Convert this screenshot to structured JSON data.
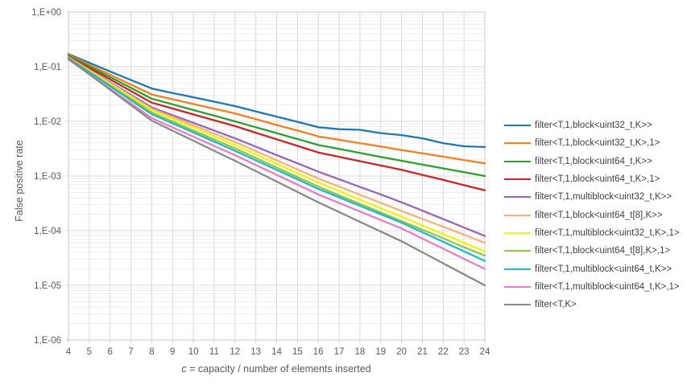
{
  "chart_data": {
    "type": "line",
    "title": "",
    "xlabel": "c = capacity / number of elements inserted",
    "xlabel_var": "c",
    "xlabel_rest": " = capacity / number of elements inserted",
    "ylabel": "False positive rate",
    "x_ticks": [
      4,
      5,
      6,
      7,
      8,
      9,
      10,
      11,
      12,
      13,
      14,
      15,
      16,
      17,
      18,
      19,
      20,
      21,
      22,
      23,
      24
    ],
    "y_tick_labels": [
      "1,E+00",
      "1,E-01",
      "1,E-02",
      "1,E-03",
      "1,E-04",
      "1,E-05",
      "1,E-06"
    ],
    "xlim": [
      4,
      24
    ],
    "ylim": [
      1e-06,
      1
    ],
    "y_scale": "log",
    "grid": true,
    "legend_position": "right",
    "x": [
      4,
      5,
      6,
      7,
      8,
      9,
      10,
      11,
      12,
      13,
      14,
      15,
      16,
      17,
      18,
      19,
      20,
      21,
      22,
      23,
      24
    ],
    "series": [
      {
        "name": "filter<T,1,block<uint32_t,K>>",
        "color": "#1F77B4",
        "values": [
          0.17,
          0.118,
          0.082,
          0.057,
          0.04,
          0.033,
          0.0276,
          0.0229,
          0.019,
          0.0152,
          0.0122,
          0.0098,
          0.0078,
          0.0072,
          0.007,
          0.0061,
          0.0056,
          0.0049,
          0.004,
          0.0035,
          0.0034
        ]
      },
      {
        "name": "filter<T,1,block<uint32_t,K>,1>",
        "color": "#F57E20",
        "values": [
          0.165,
          0.109,
          0.0715,
          0.047,
          0.031,
          0.0254,
          0.0208,
          0.0171,
          0.014,
          0.011,
          0.0086,
          0.0068,
          0.0053,
          0.0046,
          0.004,
          0.00346,
          0.003,
          0.0026,
          0.00226,
          0.00196,
          0.0017
        ]
      },
      {
        "name": "filter<T,1,block<uint64_t,K>>",
        "color": "#2CA02C",
        "values": [
          0.16,
          0.102,
          0.0645,
          0.041,
          0.026,
          0.0205,
          0.0161,
          0.0127,
          0.01,
          0.0078,
          0.0061,
          0.00475,
          0.0037,
          0.00313,
          0.00265,
          0.00224,
          0.0019,
          0.00162,
          0.00138,
          0.00118,
          0.001
        ]
      },
      {
        "name": "filter<T,1,block<uint64_t,K>,1>",
        "color": "#CC2529",
        "values": [
          0.155,
          0.095,
          0.0585,
          0.036,
          0.022,
          0.0172,
          0.0134,
          0.0105,
          0.0082,
          0.0062,
          0.0047,
          0.00356,
          0.0027,
          0.00225,
          0.00187,
          0.00156,
          0.0013,
          0.00105,
          0.00085,
          0.00068,
          0.00055
        ]
      },
      {
        "name": "filter<T,1,multiblock<uint32_t,K>>",
        "color": "#9467BD",
        "values": [
          0.15,
          0.088,
          0.052,
          0.0306,
          0.018,
          0.013,
          0.0094,
          0.0068,
          0.0049,
          0.00345,
          0.00242,
          0.00171,
          0.0012,
          0.00087,
          0.00063,
          0.00046,
          0.00033,
          0.000232,
          0.000163,
          0.000114,
          8e-05
        ]
      },
      {
        "name": "filter<T,1,block<uint64_t[8],K>>",
        "color": "#F2B27E",
        "values": [
          0.149,
          0.0866,
          0.0503,
          0.0292,
          0.017,
          0.012,
          0.00845,
          0.00596,
          0.0042,
          0.00286,
          0.00194,
          0.00132,
          0.0009,
          0.00064,
          0.000455,
          0.000323,
          0.00023,
          0.000164,
          0.000118,
          8.4e-05,
          6e-05
        ]
      },
      {
        "name": "filter<T,1,multiblock<uint32_t,K>,1>",
        "color": "#F2F20C",
        "values": [
          0.147,
          0.0844,
          0.0484,
          0.0278,
          0.016,
          0.0111,
          0.0077,
          0.00533,
          0.0037,
          0.00249,
          0.00168,
          0.00113,
          0.00076,
          0.00053,
          0.00037,
          0.000258,
          0.00018,
          0.000125,
          8.7e-05,
          6e-05,
          4.2e-05
        ]
      },
      {
        "name": "filter<T,1,block<uint64_t[8],K>,1>",
        "color": "#90C83F",
        "values": [
          0.145,
          0.0815,
          0.0458,
          0.0258,
          0.0145,
          0.00993,
          0.0068,
          0.00466,
          0.0032,
          0.00214,
          0.00143,
          0.000957,
          0.00064,
          0.000445,
          0.00031,
          0.000216,
          0.00015,
          0.000104,
          7.25e-05,
          5e-05,
          3.5e-05
        ]
      },
      {
        "name": "filter<T,1,multiblock<uint64_t,K>>",
        "color": "#23B8CE",
        "values": [
          0.143,
          0.0793,
          0.0439,
          0.0243,
          0.0135,
          0.0092,
          0.00626,
          0.00426,
          0.0029,
          0.00194,
          0.0013,
          0.00087,
          0.00058,
          0.000407,
          0.000285,
          0.0002,
          0.00014,
          9.37e-05,
          6.27e-05,
          4.19e-05,
          2.8e-05
        ]
      },
      {
        "name": "filter<T,1,multiblock<uint64_t,K>,1>",
        "color": "#E87EC6",
        "values": [
          0.135,
          0.0729,
          0.0394,
          0.0213,
          0.0115,
          0.00777,
          0.00525,
          0.00355,
          0.0024,
          0.00159,
          0.00105,
          0.000696,
          0.00046,
          0.000322,
          0.000225,
          0.000157,
          0.00011,
          7.18e-05,
          4.69e-05,
          3.06e-05,
          2e-05
        ]
      },
      {
        "name": "filter<T,K>",
        "color": "#8A8A8A",
        "values": [
          0.14,
          0.0729,
          0.038,
          0.0198,
          0.0103,
          0.00675,
          0.00442,
          0.0029,
          0.0019,
          0.00123,
          0.000792,
          0.000511,
          0.00033,
          0.000219,
          0.000145,
          9.64e-05,
          6.4e-05,
          4.02e-05,
          2.53e-05,
          1.59e-05,
          1e-05
        ]
      }
    ],
    "colors": {
      "grid_major": "#D9D9D9",
      "grid_minor": "#EEEEEE",
      "plot_border": "#C8C8C8",
      "tick_text": "#595959"
    }
  }
}
